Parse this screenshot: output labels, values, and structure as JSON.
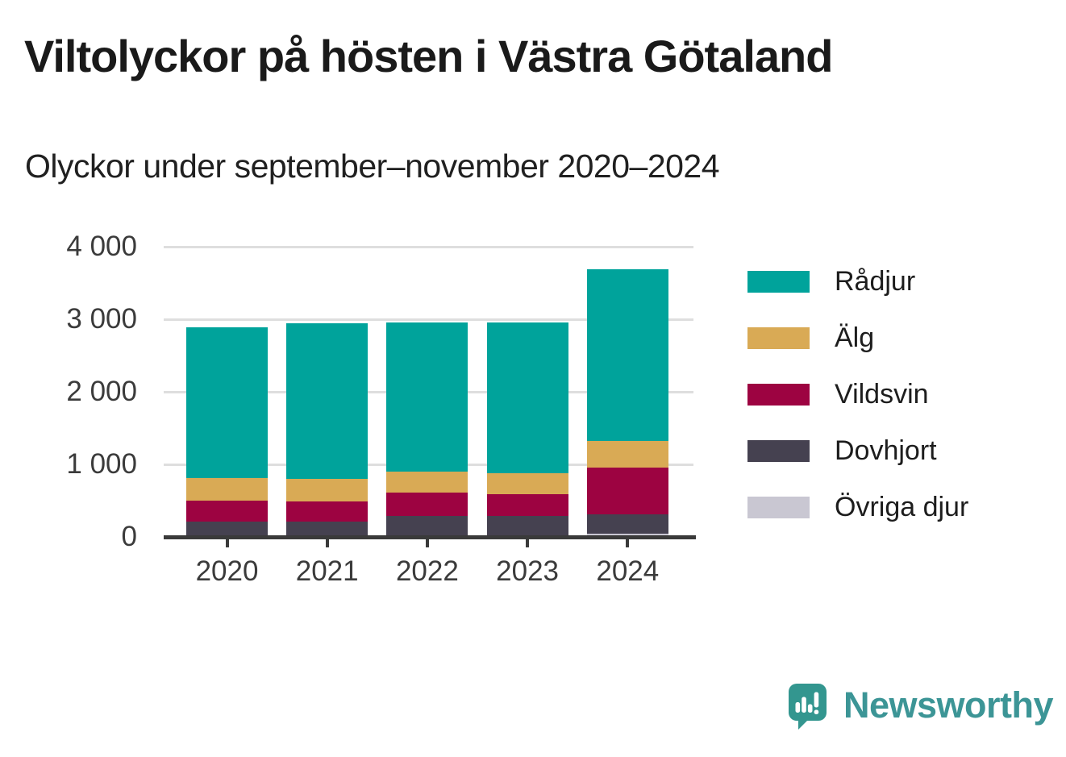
{
  "title": "Viltolyckor på hösten i Västra Götaland",
  "subtitle": "Olyckor under september–november 2020–2024",
  "chart_data": {
    "type": "bar",
    "stacked": true,
    "title": "Viltolyckor på hösten i Västra Götaland",
    "subtitle": "Olyckor under september–november 2020–2024",
    "categories": [
      "2020",
      "2021",
      "2022",
      "2023",
      "2024"
    ],
    "series": [
      {
        "name": "Rådjur",
        "slug": "radjur",
        "color": "#00a39b",
        "values": [
          2075,
          2150,
          2065,
          2080,
          2370
        ]
      },
      {
        "name": "Älg",
        "slug": "alg",
        "color": "#d9aa55",
        "values": [
          315,
          310,
          285,
          285,
          360
        ]
      },
      {
        "name": "Vildsvin",
        "slug": "vildsvin",
        "color": "#9d0341",
        "values": [
          285,
          280,
          320,
          300,
          650
        ]
      },
      {
        "name": "Dovhjort",
        "slug": "dovhjort",
        "color": "#454150",
        "values": [
          205,
          200,
          275,
          265,
          265
        ]
      },
      {
        "name": "Övriga djur",
        "slug": "ovriga-djur",
        "color": "#c9c7d2",
        "values": [
          10,
          10,
          15,
          25,
          45
        ]
      }
    ],
    "stack_order_bottom_to_top": [
      "Övriga djur",
      "Dovhjort",
      "Vildsvin",
      "Älg",
      "Rådjur"
    ],
    "totals": [
      2890,
      2950,
      2960,
      2955,
      3690
    ],
    "xlabel": "",
    "ylabel": "",
    "ylim": [
      0,
      4000
    ],
    "yticks": [
      0,
      1000,
      2000,
      3000,
      4000
    ],
    "ytick_labels": [
      "0",
      "1 000",
      "2 000",
      "3 000",
      "4 000"
    ],
    "grid": "horizontal",
    "legend_position": "right"
  },
  "colors": {
    "axis": "#3a3a3a",
    "grid": "#dedede",
    "tick_label": "#3b3b3b",
    "title_text": "#1a1a1a",
    "subtitle_text": "#202020",
    "background": "#ffffff"
  },
  "branding": {
    "logo_text": "Newsworthy",
    "logo_text_color": "#3c9596",
    "logo_icon_color": "#33968f",
    "logo_icon_mark_color": "#ffffff"
  }
}
